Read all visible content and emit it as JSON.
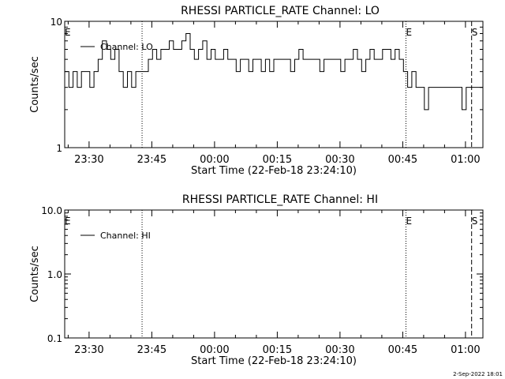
{
  "footer_date": "2-Sep-2022 18:01",
  "chart_data": [
    {
      "type": "line",
      "title": "RHESSI PARTICLE_RATE Channel: LO",
      "xlabel": "Start Time (22-Feb-18 23:24:10)",
      "ylabel": "Counts/sec",
      "yscale": "log",
      "x_unit": "minutes after 23:24:10",
      "xlim": [
        0,
        100
      ],
      "ylim": [
        1,
        10
      ],
      "x_ticks": [
        {
          "label": "23:30",
          "value": 5.83
        },
        {
          "label": "23:45",
          "value": 20.83
        },
        {
          "label": "00:00",
          "value": 35.83
        },
        {
          "label": "00:15",
          "value": 50.83
        },
        {
          "label": "00:30",
          "value": 65.83
        },
        {
          "label": "00:45",
          "value": 80.83
        },
        {
          "label": "01:00",
          "value": 95.83
        }
      ],
      "y_ticks": [
        {
          "label": "1",
          "value": 1
        },
        {
          "label": "10",
          "value": 10
        }
      ],
      "legend": {
        "entries": [
          "Channel: LO"
        ],
        "position": "top-left"
      },
      "grid": false,
      "markers": [
        {
          "label": "E",
          "x": 0,
          "style": "none"
        },
        {
          "label": "",
          "x": 18.5,
          "style": "dotted"
        },
        {
          "label": "E",
          "x": 81.6,
          "style": "dotted"
        },
        {
          "label": "S",
          "x": 97.3,
          "style": "dashed"
        },
        {
          "label": "",
          "x": 100,
          "style": "dashdot"
        }
      ],
      "series": [
        {
          "name": "Channel: LO",
          "x": [
            0,
            1,
            2,
            3,
            4,
            5,
            6,
            7,
            8,
            9,
            10,
            11,
            12,
            13,
            14,
            15,
            16,
            17,
            18,
            19,
            20,
            21,
            22,
            23,
            24,
            25,
            26,
            27,
            28,
            29,
            30,
            31,
            32,
            33,
            34,
            35,
            36,
            37,
            38,
            39,
            40,
            41,
            42,
            43,
            44,
            45,
            46,
            47,
            48,
            49,
            50,
            51,
            52,
            53,
            54,
            55,
            56,
            57,
            58,
            59,
            60,
            61,
            62,
            63,
            64,
            65,
            66,
            67,
            68,
            69,
            70,
            71,
            72,
            73,
            74,
            75,
            76,
            77,
            78,
            79,
            80,
            81,
            82,
            83,
            84,
            85,
            86,
            87,
            88,
            89,
            90,
            91,
            92,
            93,
            94,
            95,
            96,
            97,
            98,
            99,
            100
          ],
          "y": [
            4,
            3,
            4,
            3,
            4,
            4,
            3,
            4,
            5,
            7,
            6,
            5,
            6,
            4,
            3,
            4,
            3,
            4,
            4,
            4,
            5,
            6,
            5,
            6,
            6,
            7,
            6,
            6,
            7,
            8,
            6,
            5,
            6,
            7,
            5,
            6,
            5,
            5,
            6,
            5,
            5,
            4,
            5,
            5,
            4,
            5,
            5,
            4,
            5,
            4,
            5,
            5,
            5,
            5,
            4,
            5,
            6,
            5,
            5,
            5,
            5,
            4,
            5,
            5,
            5,
            5,
            4,
            5,
            5,
            6,
            5,
            4,
            5,
            6,
            5,
            5,
            6,
            6,
            5,
            6,
            5,
            4,
            3,
            4,
            3,
            3,
            2,
            3,
            3,
            3,
            3,
            3,
            3,
            3,
            3,
            2,
            3,
            3,
            3,
            3,
            3
          ]
        }
      ]
    },
    {
      "type": "line",
      "title": "RHESSI PARTICLE_RATE Channel: HI",
      "xlabel": "Start Time (22-Feb-18 23:24:10)",
      "ylabel": "Counts/sec",
      "yscale": "log",
      "x_unit": "minutes after 23:24:10",
      "xlim": [
        0,
        100
      ],
      "ylim": [
        0.1,
        10
      ],
      "x_ticks": [
        {
          "label": "23:30",
          "value": 5.83
        },
        {
          "label": "23:45",
          "value": 20.83
        },
        {
          "label": "00:00",
          "value": 35.83
        },
        {
          "label": "00:15",
          "value": 50.83
        },
        {
          "label": "00:30",
          "value": 65.83
        },
        {
          "label": "00:45",
          "value": 80.83
        },
        {
          "label": "01:00",
          "value": 95.83
        }
      ],
      "y_ticks": [
        {
          "label": "0.1",
          "value": 0.1
        },
        {
          "label": "1.0",
          "value": 1.0
        },
        {
          "label": "10.0",
          "value": 10.0
        }
      ],
      "legend": {
        "entries": [
          "Channel: HI"
        ],
        "position": "top-left"
      },
      "grid": false,
      "markers": [
        {
          "label": "E",
          "x": 0,
          "style": "none"
        },
        {
          "label": "",
          "x": 18.5,
          "style": "dotted"
        },
        {
          "label": "E",
          "x": 81.6,
          "style": "dotted"
        },
        {
          "label": "S",
          "x": 97.3,
          "style": "dashed"
        },
        {
          "label": "",
          "x": 100,
          "style": "dashdot"
        }
      ],
      "series": [
        {
          "name": "Channel: HI",
          "x": [],
          "y": []
        }
      ]
    }
  ]
}
